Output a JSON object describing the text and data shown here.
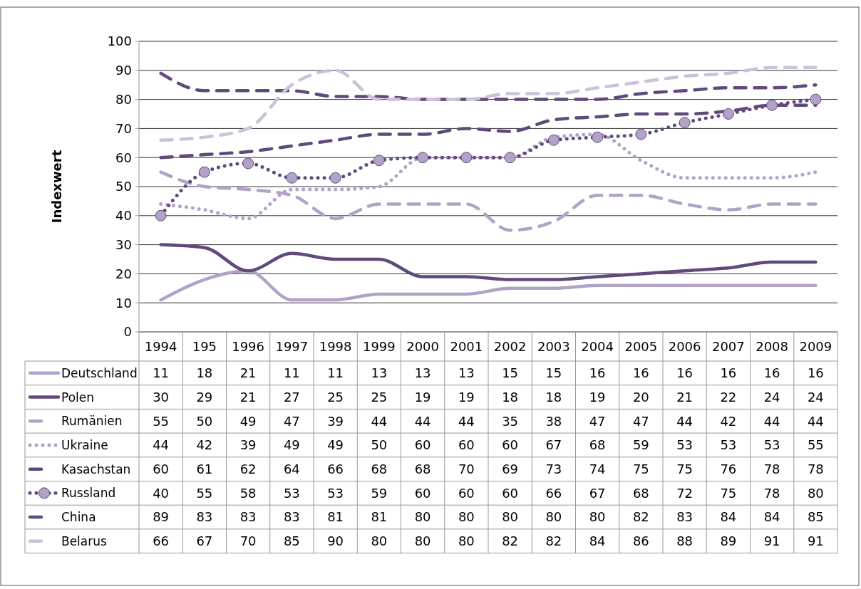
{
  "chart_data": {
    "type": "line",
    "ylabel": "Indexwert",
    "categories": [
      "1994",
      "195",
      "1996",
      "1997",
      "1998",
      "1999",
      "2000",
      "2001",
      "2002",
      "2003",
      "2004",
      "2005",
      "2006",
      "2007",
      "2008",
      "2009"
    ],
    "ylim": [
      0,
      100
    ],
    "yticks": [
      0,
      10,
      20,
      30,
      40,
      50,
      60,
      70,
      80,
      90,
      100
    ],
    "grid": "y",
    "legend": "bottom",
    "data_labels": true,
    "series": [
      {
        "name": "Deutschland",
        "color": "#b3a2c7",
        "line_style": "solid",
        "values": [
          11,
          18,
          21,
          11,
          11,
          13,
          13,
          13,
          15,
          15,
          16,
          16,
          16,
          16,
          16,
          16
        ]
      },
      {
        "name": "Polen",
        "color": "#604a7b",
        "line_style": "solid",
        "values": [
          30,
          29,
          21,
          27,
          25,
          25,
          19,
          19,
          18,
          18,
          19,
          20,
          21,
          22,
          24,
          24
        ]
      },
      {
        "name": "Rumänien",
        "color": "#b3a2c7",
        "line_style": "dashed",
        "values": [
          55,
          50,
          49,
          47,
          39,
          44,
          44,
          44,
          35,
          38,
          47,
          47,
          44,
          42,
          44,
          44
        ]
      },
      {
        "name": "Ukraine",
        "color": "#b3a2c7",
        "line_style": "dotted",
        "values": [
          44,
          42,
          39,
          49,
          49,
          50,
          60,
          60,
          60,
          67,
          68,
          59,
          53,
          53,
          53,
          55
        ]
      },
      {
        "name": "Kasachstan",
        "color": "#604a7b",
        "line_style": "dashed",
        "values": [
          60,
          61,
          62,
          64,
          66,
          68,
          68,
          70,
          69,
          73,
          74,
          75,
          75,
          76,
          78,
          78
        ]
      },
      {
        "name": "Russland",
        "color": "#604a7b",
        "line_style": "dotted",
        "marker": "circle",
        "values": [
          40,
          55,
          58,
          53,
          53,
          59,
          60,
          60,
          60,
          66,
          67,
          68,
          72,
          75,
          78,
          80
        ]
      },
      {
        "name": "China",
        "color": "#604a7b",
        "line_style": "dashed",
        "values": [
          89,
          83,
          83,
          83,
          81,
          81,
          80,
          80,
          80,
          80,
          80,
          82,
          83,
          84,
          84,
          85
        ]
      },
      {
        "name": "Belarus",
        "color": "#ccc1da",
        "line_style": "dashed",
        "values": [
          66,
          67,
          70,
          85,
          90,
          80,
          80,
          80,
          82,
          82,
          84,
          86,
          88,
          89,
          91,
          91
        ]
      }
    ]
  }
}
